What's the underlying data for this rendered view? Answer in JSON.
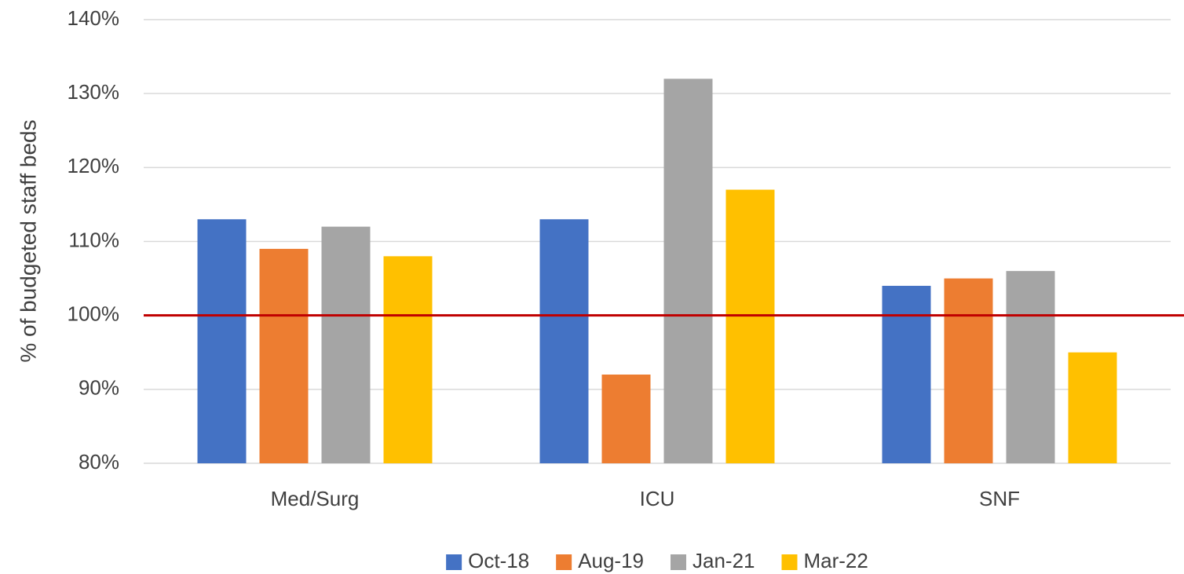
{
  "chart_data": {
    "type": "bar",
    "y_label": "% of budgeted staff beds",
    "categories": [
      "Med/Surg",
      "ICU",
      "SNF"
    ],
    "series": [
      {
        "name": "Oct-18",
        "color": "#4472c4",
        "values": [
          113,
          113,
          104
        ]
      },
      {
        "name": "Aug-19",
        "color": "#ed7d31",
        "values": [
          109,
          92,
          105
        ]
      },
      {
        "name": "Jan-21",
        "color": "#a5a5a5",
        "values": [
          112,
          132,
          106
        ]
      },
      {
        "name": "Mar-22",
        "color": "#ffc000",
        "values": [
          108,
          117,
          95
        ]
      }
    ],
    "ylim": [
      80,
      140
    ],
    "yticks": [
      {
        "value": 80,
        "label": "80%"
      },
      {
        "value": 90,
        "label": "90%"
      },
      {
        "value": 100,
        "label": "100%"
      },
      {
        "value": 110,
        "label": "110%"
      },
      {
        "value": 120,
        "label": "120%"
      },
      {
        "value": 130,
        "label": "130%"
      },
      {
        "value": 140,
        "label": "140%"
      }
    ],
    "grid": true,
    "reference_line": {
      "value": 100,
      "color": "#c00000"
    },
    "legend": "bottom"
  }
}
